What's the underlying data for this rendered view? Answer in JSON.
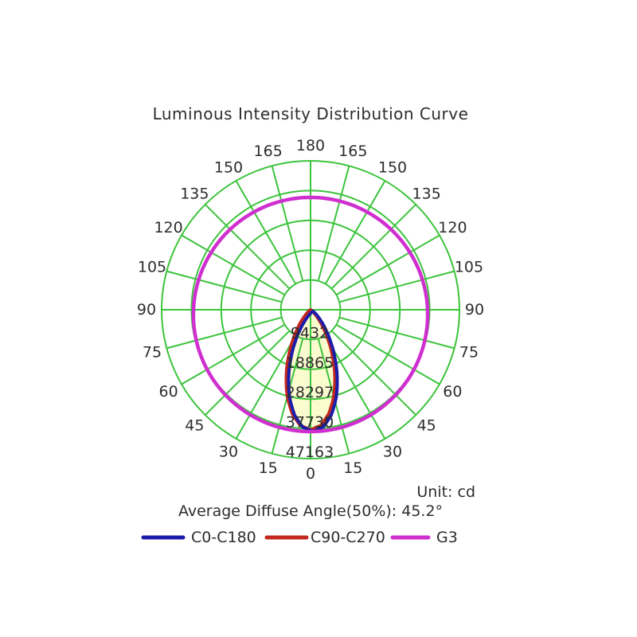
{
  "title": "Luminous Intensity Distribution Curve",
  "annotations": {
    "unit": "Unit: cd",
    "average_diffuse_angle": "Average Diffuse Angle(50%): 45.2°"
  },
  "legend": {
    "items": [
      {
        "label": "C0-C180"
      },
      {
        "label": "C90-C270"
      },
      {
        "label": "G3"
      }
    ]
  },
  "chart_data": {
    "type": "polar",
    "title": "Luminous Intensity Distribution Curve",
    "unit": "cd",
    "average_diffuse_angle_50pct_deg": 45.2,
    "angle_ticks_deg": [
      0,
      15,
      30,
      45,
      60,
      75,
      90,
      105,
      120,
      135,
      150,
      165,
      180
    ],
    "angle_ticks_mirrored": true,
    "ring_values_cd": [
      9432,
      18865,
      28297,
      37730,
      47163
    ],
    "r_max_cd": 47163,
    "grid_on": true,
    "grid_color": "#3cc43c",
    "text_color": "#2d2d2d",
    "beam_fill_color": "#fbfbd0",
    "legend_position": "bottom",
    "series": [
      {
        "name": "C0-C180",
        "color": "#1c1caa",
        "gamma_deg": [
          0,
          5,
          10,
          15,
          20,
          25,
          30,
          35,
          40,
          45,
          50,
          55,
          60,
          70,
          80,
          90
        ],
        "intensity_cd": [
          38000,
          36800,
          33400,
          28400,
          22500,
          16600,
          11350,
          7100,
          4050,
          2070,
          930,
          360,
          115,
          5,
          0,
          0
        ]
      },
      {
        "name": "C90-C270",
        "color": "#c2281e",
        "gamma_deg": [
          0,
          5,
          10,
          15,
          20,
          25,
          30,
          35,
          40,
          45,
          50,
          55,
          60,
          70,
          80,
          90
        ],
        "intensity_cd": [
          38000,
          36800,
          33400,
          28400,
          22500,
          16600,
          11350,
          7100,
          4050,
          2070,
          930,
          360,
          115,
          5,
          0,
          0
        ]
      },
      {
        "name": "G3",
        "color": "#d02fd0",
        "gamma_deg": [
          0,
          15,
          30,
          45,
          60,
          75,
          90,
          105,
          120,
          135,
          150,
          165,
          180
        ],
        "intensity_cd": [
          38600,
          38540,
          38390,
          38150,
          37840,
          37470,
          37080,
          36690,
          36320,
          36010,
          35770,
          35620,
          35570
        ]
      }
    ]
  }
}
